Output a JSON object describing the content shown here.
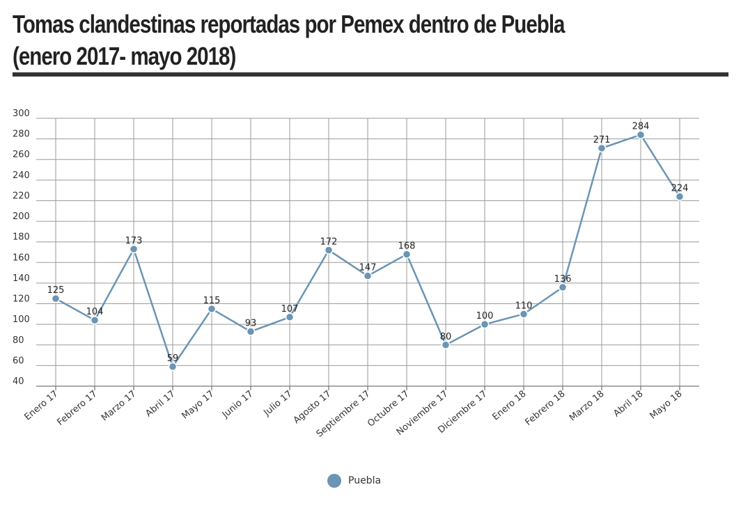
{
  "title_line1": "Tomas clandestinas reportadas por Pemex dentro de Puebla",
  "title_line2": "(enero 2017- mayo 2018)",
  "chart_data": {
    "type": "line",
    "categories": [
      "Enero 17",
      "Febrero 17",
      "Marzo 17",
      "Abril 17",
      "Mayo 17",
      "Junio 17",
      "Julio 17",
      "Agosto 17",
      "Septiembre 17",
      "Octubre 17",
      "Noviembre 17",
      "Diciembre 17",
      "Enero 18",
      "Febrero 18",
      "Marzo 18",
      "Abril 18",
      "Mayo 18"
    ],
    "series": [
      {
        "name": "Puebla",
        "values": [
          125,
          104,
          173,
          59,
          115,
          93,
          107,
          172,
          147,
          168,
          80,
          100,
          110,
          136,
          271,
          284,
          224
        ],
        "color": "#6a95b4"
      }
    ],
    "ylim": [
      40,
      300
    ],
    "yticks": [
      40,
      60,
      80,
      100,
      120,
      140,
      160,
      180,
      200,
      220,
      240,
      260,
      280,
      300
    ],
    "grid": true,
    "legend": "bottom-center"
  }
}
